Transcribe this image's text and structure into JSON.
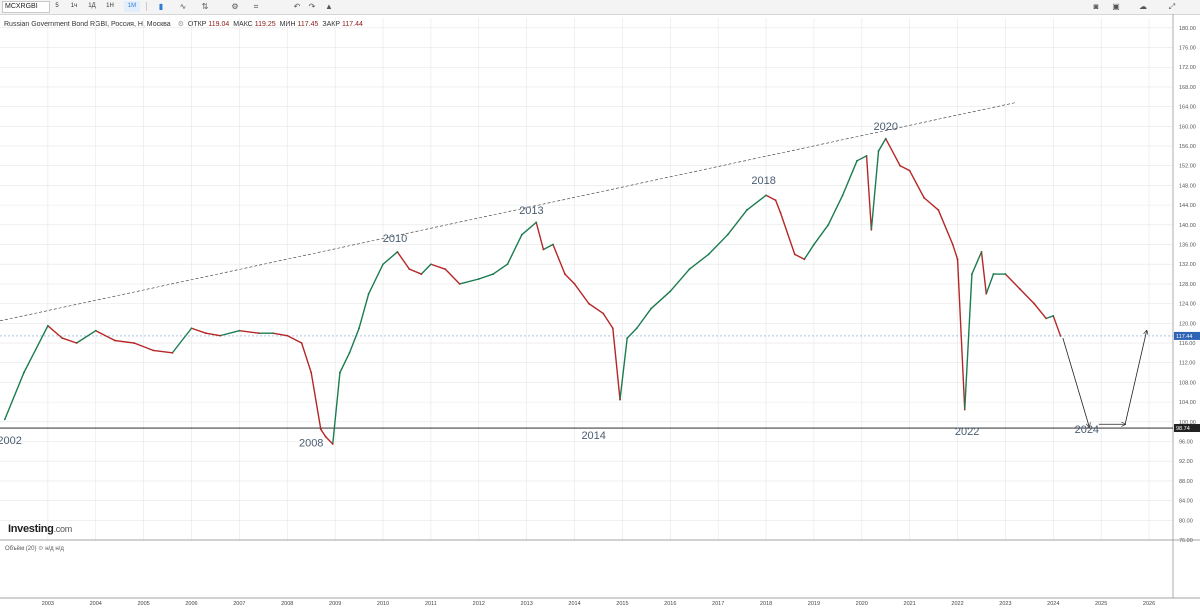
{
  "toolbar": {
    "symbol": "MCXRGBI",
    "intervals": [
      "5",
      "1ч",
      "1Д",
      "1Н",
      "1М"
    ],
    "active_interval": "1М",
    "icons": [
      "candle-type-icon",
      "indicator-icon",
      "compare-icon",
      "settings-icon",
      "undo-icon",
      "redo-icon",
      "alert-icon"
    ],
    "right_icons": [
      "camera-icon",
      "layout-icon",
      "cloud-icon",
      "fullscreen-icon"
    ]
  },
  "legend": {
    "title": "Russian Government Bond RGBI, Россия, Н, Москва",
    "open_label": "ОТКР",
    "open_value": "119.04",
    "high_label": "МАКС",
    "high_value": "119.25",
    "low_label": "МИН",
    "low_value": "117.45",
    "close_label": "ЗАКР",
    "close_value": "117.44"
  },
  "volume": {
    "label": "Объём (20)",
    "value1": "н/д",
    "value2": "н/д"
  },
  "logo": {
    "name": "Investing",
    "domain": ".com"
  },
  "colors": {
    "up": "#1b7c4f",
    "down": "#b52727",
    "grid": "#e6e6e6",
    "price_label": "#2f63b5",
    "support_label": "#222222",
    "annotation": "#4a5d72"
  },
  "chart_data": {
    "type": "line",
    "title": "Russian Government Bond RGBI",
    "x": [
      2002.1,
      2002.5,
      2003.0,
      2003.3,
      2003.6,
      2004.0,
      2004.4,
      2004.8,
      2005.2,
      2005.6,
      2006.0,
      2006.3,
      2006.6,
      2007.0,
      2007.4,
      2007.7,
      2008.0,
      2008.3,
      2008.5,
      2008.7,
      2008.8,
      2008.95,
      2009.1,
      2009.3,
      2009.5,
      2009.7,
      2010.0,
      2010.3,
      2010.55,
      2010.8,
      2011.0,
      2011.3,
      2011.6,
      2012.0,
      2012.3,
      2012.6,
      2012.9,
      2013.2,
      2013.35,
      2013.55,
      2013.8,
      2014.0,
      2014.3,
      2014.6,
      2014.8,
      2014.95,
      2015.1,
      2015.3,
      2015.6,
      2016.0,
      2016.4,
      2016.8,
      2017.2,
      2017.6,
      2018.0,
      2018.2,
      2018.3,
      2018.6,
      2018.8,
      2019.0,
      2019.3,
      2019.6,
      2019.9,
      2020.1,
      2020.2,
      2020.35,
      2020.5,
      2020.8,
      2021.0,
      2021.3,
      2021.6,
      2021.9,
      2022.0,
      2022.15,
      2022.3,
      2022.5,
      2022.6,
      2022.75,
      2023.0,
      2023.3,
      2023.6,
      2023.85,
      2024.0,
      2024.15
    ],
    "values": [
      100.5,
      110.0,
      119.5,
      117.0,
      116.0,
      118.5,
      116.5,
      116.0,
      114.5,
      114.0,
      119.0,
      118.0,
      117.5,
      118.5,
      118.0,
      118.0,
      117.5,
      116.0,
      110.0,
      98.5,
      97.0,
      95.5,
      110.0,
      114.0,
      119.0,
      126.0,
      132.0,
      134.5,
      131.0,
      130.0,
      132.0,
      131.0,
      128.0,
      129.0,
      130.0,
      132.0,
      138.0,
      140.5,
      135.0,
      136.0,
      130.0,
      128.0,
      124.0,
      122.0,
      119.0,
      104.5,
      117.0,
      119.0,
      123.0,
      126.5,
      131.0,
      134.0,
      138.0,
      143.0,
      146.0,
      145.0,
      142.5,
      134.0,
      133.0,
      136.0,
      140.0,
      146.0,
      153.0,
      154.0,
      139.0,
      155.0,
      157.5,
      152.0,
      151.0,
      145.5,
      143.0,
      136.0,
      133.0,
      102.5,
      130.0,
      134.5,
      126.0,
      130.0,
      130.0,
      127.0,
      124.0,
      121.0,
      121.5,
      117.44
    ],
    "xlim": [
      2002.0,
      2026.5
    ],
    "ylim": [
      76,
      182
    ],
    "ticks_y": [
      76,
      80,
      84,
      88,
      92,
      96,
      100,
      104,
      108,
      112,
      116,
      120,
      124,
      128,
      132,
      136,
      140,
      144,
      148,
      152,
      156,
      160,
      164,
      168,
      172,
      176,
      180
    ],
    "ticks_y_labels": [
      "76.00",
      "80.00",
      "84.00",
      "88.00",
      "92.00",
      "96.00",
      "100.00",
      "104.00",
      "108.00",
      "112.00",
      "116.00",
      "120.00",
      "124.00",
      "128.00",
      "132.00",
      "136.00",
      "140.00",
      "144.00",
      "148.00",
      "152.00",
      "156.00",
      "160.00",
      "164.00",
      "168.00",
      "172.00",
      "176.00",
      "180.00"
    ],
    "ticks_x": [
      2003,
      2004,
      2005,
      2006,
      2007,
      2008,
      2009,
      2010,
      2011,
      2012,
      2013,
      2014,
      2015,
      2016,
      2017,
      2018,
      2019,
      2020,
      2021,
      2022,
      2023,
      2024,
      2025,
      2026
    ],
    "ticks_x_labels": [
      "2003",
      "2004",
      "2005",
      "2006",
      "2007",
      "2008",
      "2009",
      "2010",
      "2011",
      "2012",
      "2013",
      "2014",
      "2015",
      "2016",
      "2017",
      "2018",
      "2019",
      "2020",
      "2021",
      "2022",
      "2023",
      "2024",
      "2025",
      "2026"
    ],
    "last_price": 117.44,
    "last_price_label": "117.44",
    "support_level": 98.74,
    "support_label": "98.74",
    "trendline": {
      "x": [
        2002.0,
        2023.2
      ],
      "y": [
        120.5,
        164.8
      ]
    },
    "annotations": [
      {
        "text": "2002",
        "x": 2002.2,
        "y": 95.5
      },
      {
        "text": "2008",
        "x": 2008.5,
        "y": 95.0
      },
      {
        "text": "2010",
        "x": 2010.25,
        "y": 136.5
      },
      {
        "text": "2013",
        "x": 2013.1,
        "y": 142.2
      },
      {
        "text": "2018",
        "x": 2017.95,
        "y": 148.3
      },
      {
        "text": "2020",
        "x": 2020.5,
        "y": 159.3
      },
      {
        "text": "2014",
        "x": 2014.4,
        "y": 96.5
      },
      {
        "text": "2022",
        "x": 2022.2,
        "y": 97.3
      },
      {
        "text": "2024",
        "x": 2024.7,
        "y": 97.7
      }
    ],
    "projection": {
      "down": {
        "x": [
          2024.2,
          2024.75
        ],
        "y": [
          117.0,
          99.0
        ]
      },
      "flat": {
        "x": [
          2024.95,
          2025.5
        ],
        "y": [
          99.5,
          99.5
        ]
      },
      "up": {
        "x": [
          2025.5,
          2025.95
        ],
        "y": [
          99.5,
          118.5
        ]
      }
    },
    "grid": true,
    "legend": "none"
  }
}
